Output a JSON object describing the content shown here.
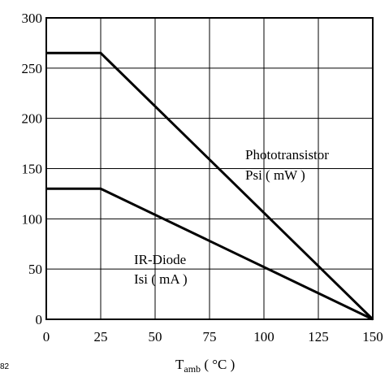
{
  "chart_data": {
    "type": "line",
    "xlabel_main": "T",
    "xlabel_sub": "amb",
    "xlabel_unit": " ( °C )",
    "figure_code": "82",
    "xlim": [
      0,
      150
    ],
    "ylim": [
      0,
      300
    ],
    "x_ticks": [
      0,
      25,
      50,
      75,
      100,
      125,
      150
    ],
    "y_ticks": [
      0,
      50,
      100,
      150,
      200,
      250,
      300
    ],
    "grid": true,
    "series": [
      {
        "name_line1": "Phototransistor",
        "name_line2": "Psi ( mW )",
        "points": [
          [
            0,
            265
          ],
          [
            25,
            265
          ],
          [
            150,
            0
          ]
        ]
      },
      {
        "name_line1": "IR-Diode",
        "name_line2": "Isi ( mA )",
        "points": [
          [
            0,
            130
          ],
          [
            25,
            130
          ],
          [
            150,
            0
          ]
        ]
      }
    ]
  }
}
